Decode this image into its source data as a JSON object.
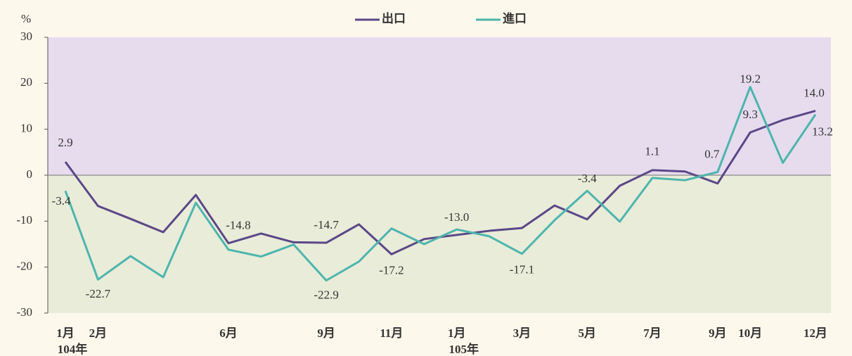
{
  "chart_data": {
    "type": "line",
    "y_unit": "%",
    "categories": [
      "1月",
      "2月",
      null,
      null,
      null,
      "6月",
      null,
      null,
      "9月",
      null,
      "11月",
      null,
      "1月",
      null,
      "3月",
      null,
      "5月",
      null,
      "7月",
      null,
      "9月",
      "10月",
      null,
      "12月"
    ],
    "x_sublabels": [
      "104年",
      null,
      null,
      null,
      null,
      null,
      null,
      null,
      null,
      null,
      null,
      null,
      "105年",
      null,
      null,
      null,
      null,
      null,
      null,
      null,
      null,
      null,
      null,
      null
    ],
    "series": [
      {
        "name": "出口",
        "color": "#5b4787",
        "values": [
          2.9,
          -6.7,
          -9.5,
          -12.4,
          -4.3,
          -14.8,
          -12.7,
          -14.6,
          -14.7,
          -10.7,
          -17.2,
          -13.9,
          -13.0,
          -12.1,
          -11.5,
          -6.6,
          -9.6,
          -2.3,
          1.1,
          0.8,
          -1.8,
          9.3,
          12.0,
          14.0
        ],
        "value_labels": [
          "2.9",
          null,
          null,
          null,
          null,
          "-14.8",
          null,
          null,
          "-14.7",
          null,
          "-17.2",
          null,
          "-13.0",
          null,
          null,
          null,
          null,
          null,
          "1.1",
          null,
          null,
          "9.3",
          null,
          "14.0"
        ]
      },
      {
        "name": "進口",
        "color": "#4db5ad",
        "values": [
          -3.4,
          -22.7,
          -17.6,
          -22.2,
          -6.0,
          -16.2,
          -17.7,
          -15.1,
          -22.9,
          -18.8,
          -11.6,
          -15.0,
          -11.8,
          -13.3,
          -17.1,
          -9.8,
          -3.4,
          -10.1,
          -0.6,
          -1.1,
          0.7,
          19.2,
          2.7,
          13.2
        ],
        "value_labels": [
          "-3.4",
          "-22.7",
          null,
          null,
          null,
          null,
          null,
          null,
          "-22.9",
          null,
          null,
          null,
          null,
          null,
          "-17.1",
          null,
          "-3.4",
          null,
          null,
          null,
          "0.7",
          "19.2",
          null,
          "13.2"
        ]
      }
    ],
    "ylim": [
      -30,
      30
    ],
    "yticks": [
      -30,
      -20,
      -10,
      0,
      10,
      20,
      30
    ],
    "positive_fill": "#e6dcee",
    "negative_fill": "#e9ecd9"
  }
}
